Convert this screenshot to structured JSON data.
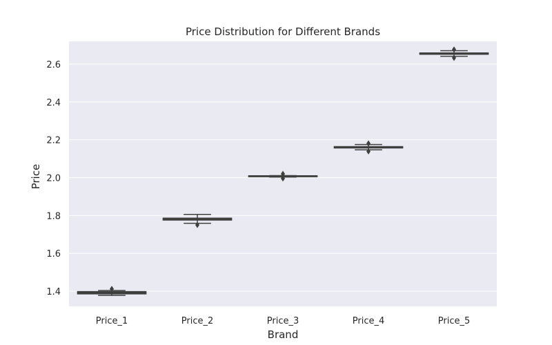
{
  "chart_data": {
    "type": "box",
    "title": "Price Distribution for Different Brands",
    "xlabel": "Brand",
    "ylabel": "Price",
    "ylim": [
      1.32,
      2.72
    ],
    "yticks": [
      "1.4",
      "1.6",
      "1.8",
      "2.0",
      "2.2",
      "2.4",
      "2.6"
    ],
    "grid": true,
    "categories": [
      "Price_1",
      "Price_2",
      "Price_3",
      "Price_4",
      "Price_5"
    ],
    "boxes": [
      {
        "name": "Price_1",
        "whisker_low": 1.378,
        "q1": 1.386,
        "median": 1.393,
        "q3": 1.398,
        "whisker_high": 1.404,
        "fliers": [
          1.412
        ]
      },
      {
        "name": "Price_2",
        "whisker_low": 1.759,
        "q1": 1.776,
        "median": 1.782,
        "q3": 1.786,
        "whisker_high": 1.806,
        "fliers": [
          1.75
        ]
      },
      {
        "name": "Price_3",
        "whisker_low": 2.003,
        "q1": 2.005,
        "median": 2.007,
        "q3": 2.01,
        "whisker_high": 2.011,
        "fliers": [
          2.02,
          1.996
        ]
      },
      {
        "name": "Price_4",
        "whisker_low": 2.147,
        "q1": 2.157,
        "median": 2.161,
        "q3": 2.164,
        "whisker_high": 2.175,
        "fliers": [
          2.181,
          2.139
        ]
      },
      {
        "name": "Price_5",
        "whisker_low": 2.641,
        "q1": 2.652,
        "median": 2.656,
        "q3": 2.659,
        "whisker_high": 2.671,
        "fliers": [
          2.677,
          2.633
        ]
      }
    ],
    "colors": {
      "plot_bg": "#eaeaf2",
      "box_fill": "#3f3f3f",
      "line": "#3f3f3f",
      "grid": "#ffffff",
      "text": "#262626"
    }
  }
}
